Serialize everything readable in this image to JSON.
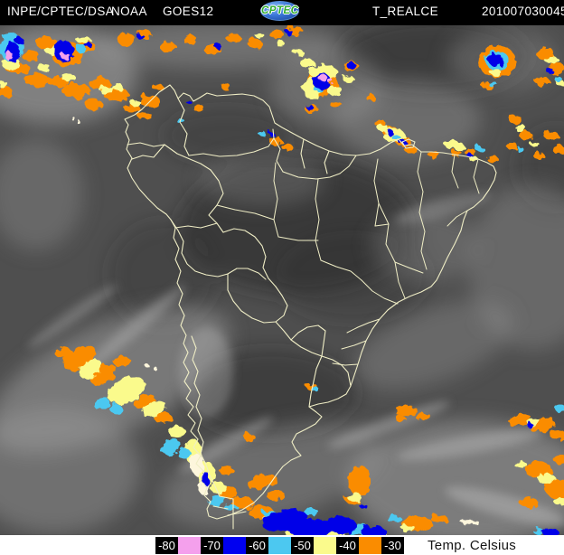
{
  "header": {
    "agency": "INPE/CPTEC/DSA",
    "operator": "NOAA",
    "satellite": "GOES12",
    "logo_text": "CPTEC",
    "product": "T_REALCE",
    "timestamp": "201007030045",
    "colors": {
      "background": "#000000",
      "text": "#ffffff",
      "logo_blue": "#3a77d8",
      "logo_green": "#2fae2f"
    }
  },
  "map": {
    "border_color": "#f0eec6",
    "enhancement_palette": {
      "minus30_to_40": "#fa8c00",
      "minus40_to_50": "#fafa8c",
      "minus50_to_60": "#4cc8f0",
      "minus60_to_70": "#0000ee",
      "minus70_to_80": "#f4a0ec",
      "background_gray": "#4f4f4f"
    }
  },
  "legend": {
    "title": "Temp. Celsius",
    "label_bg": "#000000",
    "label_text_color": "#ffffff",
    "cells": [
      {
        "type": "label",
        "text": "-80"
      },
      {
        "type": "swatch",
        "color": "#f4a0ec"
      },
      {
        "type": "label",
        "text": "-70"
      },
      {
        "type": "swatch",
        "color": "#0000f0"
      },
      {
        "type": "label",
        "text": "-60"
      },
      {
        "type": "swatch",
        "color": "#4cc8f0"
      },
      {
        "type": "label",
        "text": "-50"
      },
      {
        "type": "swatch",
        "color": "#fafa8c"
      },
      {
        "type": "label",
        "text": "-40"
      },
      {
        "type": "swatch",
        "color": "#fa8c00"
      },
      {
        "type": "label",
        "text": "-30"
      }
    ]
  }
}
